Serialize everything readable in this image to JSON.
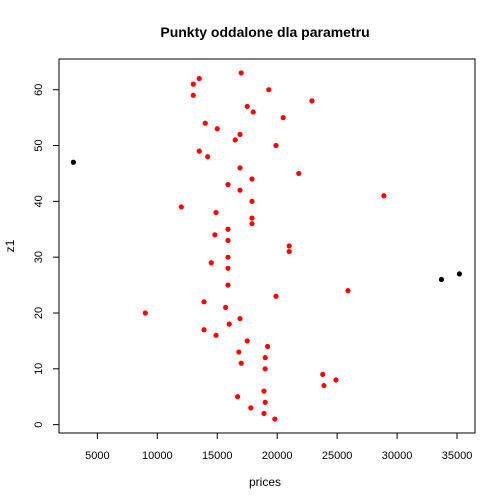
{
  "chart_data": {
    "type": "scatter",
    "title": "Punkty oddalone dla parametru",
    "xlabel": "prices",
    "ylabel": "z1",
    "xlim": [
      1800,
      36500
    ],
    "ylim": [
      -1.5,
      65.5
    ],
    "x_ticks": [
      5000,
      10000,
      15000,
      20000,
      25000,
      30000,
      35000
    ],
    "y_ticks": [
      0,
      10,
      20,
      30,
      40,
      50,
      60
    ],
    "grid": false,
    "legend": false,
    "colors": {
      "normal": "#ff0000",
      "outlier": "#000000",
      "axis": "#000000"
    },
    "series": [
      {
        "color": "#ff0000",
        "points": [
          [
            19800,
            1
          ],
          [
            18900,
            2
          ],
          [
            17800,
            3
          ],
          [
            19000,
            4
          ],
          [
            16700,
            5
          ],
          [
            18900,
            6
          ],
          [
            23900,
            7
          ],
          [
            24900,
            8
          ],
          [
            23800,
            9
          ],
          [
            19000,
            10
          ],
          [
            17000,
            11
          ],
          [
            19000,
            12
          ],
          [
            16800,
            13
          ],
          [
            19200,
            14
          ],
          [
            17500,
            15
          ],
          [
            14900,
            16
          ],
          [
            13900,
            17
          ],
          [
            16000,
            18
          ],
          [
            16900,
            19
          ],
          [
            9000,
            20
          ],
          [
            15700,
            21
          ],
          [
            13900,
            22
          ],
          [
            19900,
            23
          ],
          [
            25900,
            24
          ],
          [
            15900,
            25
          ],
          [
            15900,
            28
          ],
          [
            14500,
            29
          ],
          [
            15900,
            30
          ],
          [
            21000,
            31
          ],
          [
            21000,
            32
          ],
          [
            15900,
            33
          ],
          [
            14800,
            34
          ],
          [
            15900,
            35
          ],
          [
            17900,
            36
          ],
          [
            17900,
            37
          ],
          [
            14900,
            38
          ],
          [
            12000,
            39
          ],
          [
            17900,
            40
          ],
          [
            28900,
            41
          ],
          [
            16900,
            42
          ],
          [
            15900,
            43
          ],
          [
            17900,
            44
          ],
          [
            21800,
            45
          ],
          [
            16900,
            46
          ],
          [
            13500,
            49
          ],
          [
            14200,
            48
          ],
          [
            19900,
            50
          ],
          [
            16500,
            51
          ],
          [
            16900,
            52
          ],
          [
            15000,
            53
          ],
          [
            14000,
            54
          ],
          [
            20500,
            55
          ],
          [
            18000,
            56
          ],
          [
            17500,
            57
          ],
          [
            22900,
            58
          ],
          [
            13000,
            59
          ],
          [
            19300,
            60
          ],
          [
            13000,
            61
          ],
          [
            13500,
            62
          ],
          [
            17000,
            63
          ]
        ]
      },
      {
        "color": "#000000",
        "points": [
          [
            3000,
            47
          ],
          [
            33700,
            26
          ],
          [
            35200,
            27
          ]
        ]
      }
    ]
  }
}
